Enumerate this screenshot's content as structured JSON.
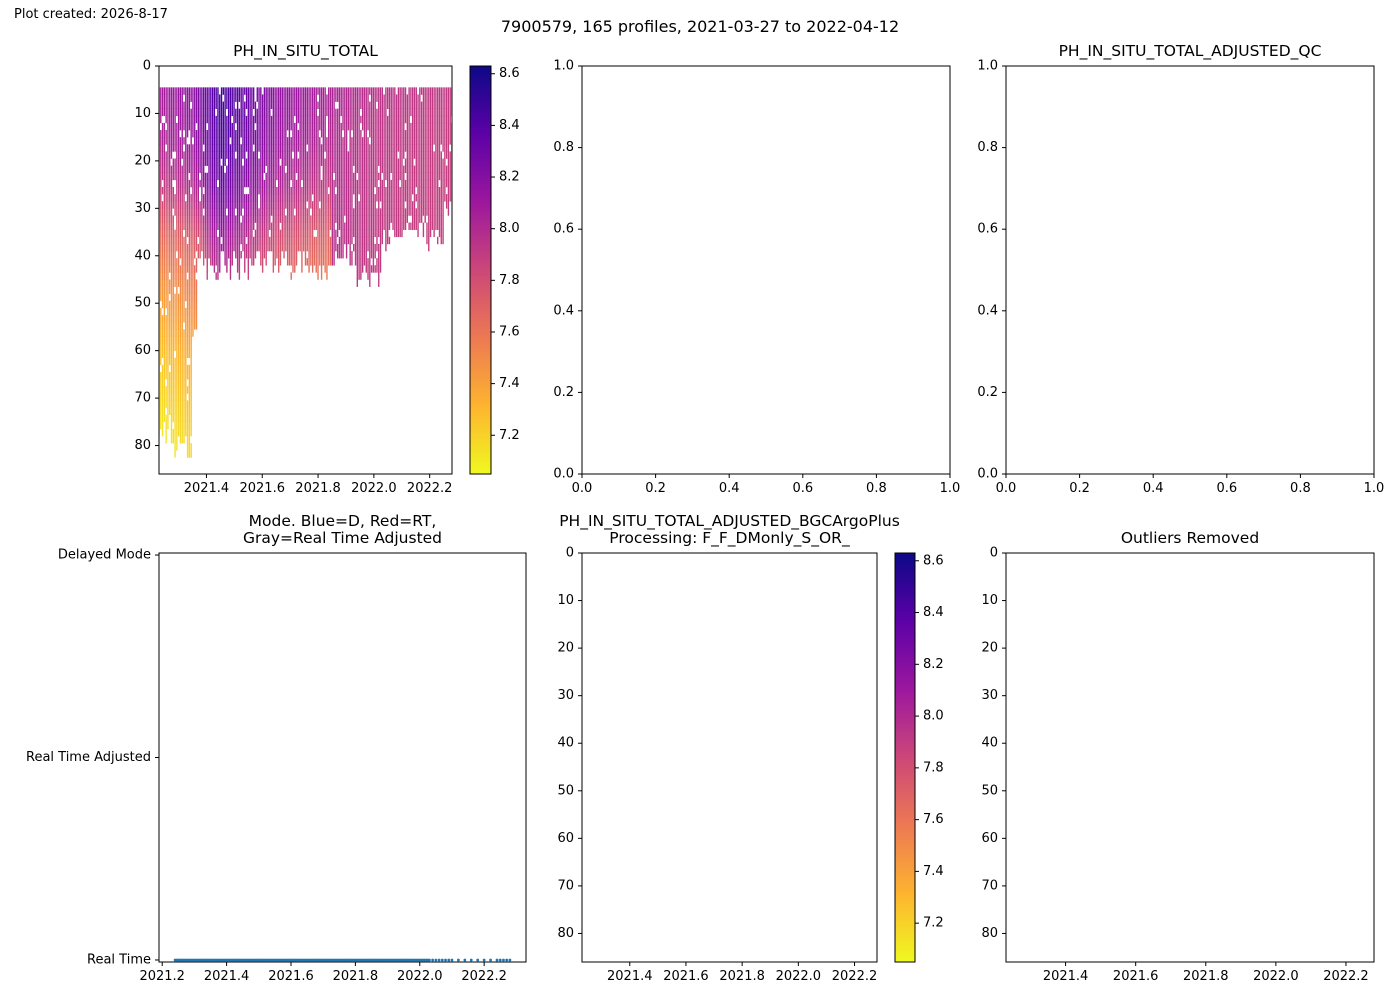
{
  "header": {
    "plot_created": "Plot created: 2026-8-17",
    "suptitle": "7900579, 165 profiles, 2021-03-27 to 2022-04-12"
  },
  "colormap": {
    "name": "plasma",
    "stops": [
      "#f0f921",
      "#fdb42f",
      "#ed7953",
      "#cc4778",
      "#9c179e",
      "#5c01a6",
      "#0d0887"
    ]
  },
  "chart_data": [
    {
      "type": "heatmap",
      "title": "PH_IN_SITU_TOTAL",
      "xlim": [
        2021.23,
        2022.28
      ],
      "ylim": [
        86,
        0
      ],
      "y_inverted": true,
      "xticks": [
        {
          "value": 2021.4,
          "label": "2021.4"
        },
        {
          "value": 2021.6,
          "label": "2021.6"
        },
        {
          "value": 2021.8,
          "label": "2021.8"
        },
        {
          "value": 2022.0,
          "label": "2022.0"
        },
        {
          "value": 2022.2,
          "label": "2022.2"
        }
      ],
      "yticks": [
        {
          "value": 0,
          "label": "0"
        },
        {
          "value": 10,
          "label": "10"
        },
        {
          "value": 20,
          "label": "20"
        },
        {
          "value": 30,
          "label": "30"
        },
        {
          "value": 40,
          "label": "40"
        },
        {
          "value": 50,
          "label": "50"
        },
        {
          "value": 60,
          "label": "60"
        },
        {
          "value": 70,
          "label": "70"
        },
        {
          "value": 80,
          "label": "80"
        }
      ],
      "colorbar": {
        "range": [
          7.05,
          8.63
        ],
        "ticks": [
          "7.2",
          "7.4",
          "7.6",
          "7.8",
          "8.0",
          "8.2",
          "8.4",
          "8.6"
        ]
      },
      "profiles": {
        "count": 165,
        "time_start": 2021.23,
        "time_end": 2022.28,
        "top_depth": 4.5,
        "max_depth_segments": [
          {
            "from": 2021.23,
            "to": 2021.28,
            "depth": 80
          },
          {
            "from": 2021.28,
            "to": 2021.35,
            "depth": 83
          },
          {
            "from": 2021.35,
            "to": 2021.37,
            "depth": 60
          },
          {
            "from": 2021.37,
            "to": 2021.75,
            "depth": 44
          },
          {
            "from": 2021.75,
            "to": 2021.85,
            "depth": 46
          },
          {
            "from": 2021.85,
            "to": 2021.93,
            "depth": 42
          },
          {
            "from": 2021.93,
            "to": 2022.03,
            "depth": 47
          },
          {
            "from": 2022.03,
            "to": 2022.11,
            "depth": 38
          },
          {
            "from": 2022.11,
            "to": 2022.19,
            "depth": 37
          },
          {
            "from": 2022.19,
            "to": 2022.25,
            "depth": 38
          },
          {
            "from": 2022.25,
            "to": 2022.28,
            "depth": 31
          }
        ],
        "surface_ph_points": [
          [
            2021.23,
            8.05
          ],
          [
            2021.35,
            8.15
          ],
          [
            2021.45,
            8.45
          ],
          [
            2021.55,
            8.3
          ],
          [
            2021.65,
            8.15
          ],
          [
            2021.8,
            8.05
          ],
          [
            2022.0,
            7.95
          ],
          [
            2022.28,
            7.9
          ]
        ],
        "deep_ph_points": [
          [
            0,
            8.1
          ],
          [
            15,
            8.0
          ],
          [
            25,
            7.85
          ],
          [
            35,
            7.6
          ],
          [
            45,
            7.45
          ],
          [
            60,
            7.25
          ],
          [
            80,
            7.08
          ]
        ]
      }
    },
    {
      "type": "scatter",
      "title": "",
      "xlim": [
        0,
        1
      ],
      "ylim": [
        0,
        1
      ],
      "xticks": [
        {
          "value": 0,
          "label": "0.0"
        },
        {
          "value": 0.2,
          "label": "0.2"
        },
        {
          "value": 0.4,
          "label": "0.4"
        },
        {
          "value": 0.6,
          "label": "0.6"
        },
        {
          "value": 0.8,
          "label": "0.8"
        },
        {
          "value": 1,
          "label": "1.0"
        }
      ],
      "yticks": [
        {
          "value": 0,
          "label": "0.0"
        },
        {
          "value": 0.2,
          "label": "0.2"
        },
        {
          "value": 0.4,
          "label": "0.4"
        },
        {
          "value": 0.6,
          "label": "0.6"
        },
        {
          "value": 0.8,
          "label": "0.8"
        },
        {
          "value": 1,
          "label": "1.0"
        }
      ],
      "series": []
    },
    {
      "type": "scatter",
      "title": "PH_IN_SITU_TOTAL_ADJUSTED_QC",
      "xlim": [
        0,
        1
      ],
      "ylim": [
        0,
        1
      ],
      "xticks": [
        {
          "value": 0,
          "label": "0.0"
        },
        {
          "value": 0.2,
          "label": "0.2"
        },
        {
          "value": 0.4,
          "label": "0.4"
        },
        {
          "value": 0.6,
          "label": "0.6"
        },
        {
          "value": 0.8,
          "label": "0.8"
        },
        {
          "value": 1,
          "label": "1.0"
        }
      ],
      "yticks": [
        {
          "value": 0,
          "label": "0.0"
        },
        {
          "value": 0.2,
          "label": "0.2"
        },
        {
          "value": 0.4,
          "label": "0.4"
        },
        {
          "value": 0.6,
          "label": "0.6"
        },
        {
          "value": 0.8,
          "label": "0.8"
        },
        {
          "value": 1,
          "label": "1.0"
        }
      ],
      "series": []
    },
    {
      "type": "scatter",
      "title": "Mode. Blue=D, Red=RT,\nGray=Real Time Adjusted",
      "xlim": [
        2021.19,
        2022.33
      ],
      "ylim": [
        -0.005,
        1.005
      ],
      "xticks": [
        {
          "value": 2021.2,
          "label": "2021.2"
        },
        {
          "value": 2021.4,
          "label": "2021.4"
        },
        {
          "value": 2021.6,
          "label": "2021.6"
        },
        {
          "value": 2021.8,
          "label": "2021.8"
        },
        {
          "value": 2022.0,
          "label": "2022.0"
        },
        {
          "value": 2022.2,
          "label": "2022.2"
        }
      ],
      "yticks": [
        {
          "value": 0,
          "label": "Real Time"
        },
        {
          "value": 0.5,
          "label": "Real Time Adjusted"
        },
        {
          "value": 1,
          "label": "Delayed Mode"
        }
      ],
      "series": [
        {
          "color": "#1f77b4",
          "y": 0,
          "x_dense_range": [
            2021.24,
            2022.03
          ],
          "x_sparse": [
            2022.04,
            2022.05,
            2022.06,
            2022.07,
            2022.08,
            2022.09,
            2022.1,
            2022.12,
            2022.14,
            2022.16,
            2022.18,
            2022.2,
            2022.22,
            2022.24,
            2022.25,
            2022.26,
            2022.27,
            2022.28
          ]
        }
      ]
    },
    {
      "type": "heatmap",
      "title": "PH_IN_SITU_TOTAL_ADJUSTED_BGCArgoPlus\nProcessing: F_F_DMonly_S_OR_",
      "xlim": [
        2021.23,
        2022.28
      ],
      "ylim": [
        86,
        0
      ],
      "y_inverted": true,
      "xticks": [
        {
          "value": 2021.4,
          "label": "2021.4"
        },
        {
          "value": 2021.6,
          "label": "2021.6"
        },
        {
          "value": 2021.8,
          "label": "2021.8"
        },
        {
          "value": 2022.0,
          "label": "2022.0"
        },
        {
          "value": 2022.2,
          "label": "2022.2"
        }
      ],
      "yticks": [
        {
          "value": 0,
          "label": "0"
        },
        {
          "value": 10,
          "label": "10"
        },
        {
          "value": 20,
          "label": "20"
        },
        {
          "value": 30,
          "label": "30"
        },
        {
          "value": 40,
          "label": "40"
        },
        {
          "value": 50,
          "label": "50"
        },
        {
          "value": 60,
          "label": "60"
        },
        {
          "value": 70,
          "label": "70"
        },
        {
          "value": 80,
          "label": "80"
        }
      ],
      "colorbar": {
        "range": [
          7.05,
          8.63
        ],
        "ticks": [
          "7.2",
          "7.4",
          "7.6",
          "7.8",
          "8.0",
          "8.2",
          "8.4",
          "8.6"
        ]
      },
      "series": []
    },
    {
      "type": "heatmap",
      "title": "Outliers Removed",
      "xlim": [
        2021.23,
        2022.28
      ],
      "ylim": [
        86,
        0
      ],
      "y_inverted": true,
      "xticks": [
        {
          "value": 2021.4,
          "label": "2021.4"
        },
        {
          "value": 2021.6,
          "label": "2021.6"
        },
        {
          "value": 2021.8,
          "label": "2021.8"
        },
        {
          "value": 2022.0,
          "label": "2022.0"
        },
        {
          "value": 2022.2,
          "label": "2022.2"
        }
      ],
      "yticks": [
        {
          "value": 0,
          "label": "0"
        },
        {
          "value": 10,
          "label": "10"
        },
        {
          "value": 20,
          "label": "20"
        },
        {
          "value": 30,
          "label": "30"
        },
        {
          "value": 40,
          "label": "40"
        },
        {
          "value": 50,
          "label": "50"
        },
        {
          "value": 60,
          "label": "60"
        },
        {
          "value": 70,
          "label": "70"
        },
        {
          "value": 80,
          "label": "80"
        }
      ],
      "series": []
    }
  ]
}
